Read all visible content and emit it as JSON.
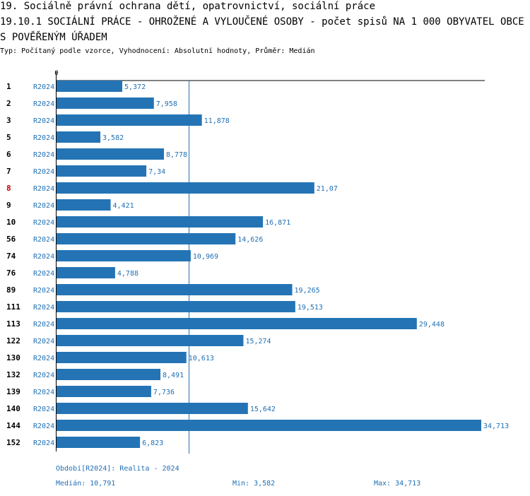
{
  "header": {
    "section": "19. Sociálně právní ochrana dětí, opatrovnictví, sociální práce",
    "indicator": "19.10.1 SOCIÁLNÍ PRÁCE - OHROŽENÉ A VYLOUČENÉ OSOBY - počet spisů NA 1 000 OBYVATEL OBCE S POVĚŘENÝM ÚŘADEM",
    "type_line": "Typ: Počítaný podle vzorce, Vyhodnocení: Absolutní hodnoty, Průměr: Medián"
  },
  "chart_data": {
    "type": "bar",
    "orientation": "horizontal",
    "x_tick_labels": [
      "0"
    ],
    "xlim": [
      0,
      34.713
    ],
    "median": 10.791,
    "highlight_category": "8",
    "colors": {
      "bar": "#2474b5",
      "value_label": "#1f6fb4",
      "highlight_label": "#cc0000",
      "median_line": "#2474b5"
    },
    "rows": [
      {
        "category": "1",
        "period": "R2024",
        "value": 5.372,
        "label": "5,372"
      },
      {
        "category": "2",
        "period": "R2024",
        "value": 7.958,
        "label": "7,958"
      },
      {
        "category": "3",
        "period": "R2024",
        "value": 11.878,
        "label": "11,878"
      },
      {
        "category": "5",
        "period": "R2024",
        "value": 3.582,
        "label": "3,582"
      },
      {
        "category": "6",
        "period": "R2024",
        "value": 8.778,
        "label": "8,778"
      },
      {
        "category": "7",
        "period": "R2024",
        "value": 7.34,
        "label": "7,34"
      },
      {
        "category": "8",
        "period": "R2024",
        "value": 21.07,
        "label": "21,07"
      },
      {
        "category": "9",
        "period": "R2024",
        "value": 4.421,
        "label": "4,421"
      },
      {
        "category": "10",
        "period": "R2024",
        "value": 16.871,
        "label": "16,871"
      },
      {
        "category": "56",
        "period": "R2024",
        "value": 14.626,
        "label": "14,626"
      },
      {
        "category": "74",
        "period": "R2024",
        "value": 10.969,
        "label": "10,969"
      },
      {
        "category": "76",
        "period": "R2024",
        "value": 4.788,
        "label": "4,788"
      },
      {
        "category": "89",
        "period": "R2024",
        "value": 19.265,
        "label": "19,265"
      },
      {
        "category": "111",
        "period": "R2024",
        "value": 19.513,
        "label": "19,513"
      },
      {
        "category": "113",
        "period": "R2024",
        "value": 29.448,
        "label": "29,448"
      },
      {
        "category": "122",
        "period": "R2024",
        "value": 15.274,
        "label": "15,274"
      },
      {
        "category": "130",
        "period": "R2024",
        "value": 10.613,
        "label": "10,613"
      },
      {
        "category": "132",
        "period": "R2024",
        "value": 8.491,
        "label": "8,491"
      },
      {
        "category": "139",
        "period": "R2024",
        "value": 7.736,
        "label": "7,736"
      },
      {
        "category": "140",
        "period": "R2024",
        "value": 15.642,
        "label": "15,642"
      },
      {
        "category": "144",
        "period": "R2024",
        "value": 34.713,
        "label": "34,713"
      },
      {
        "category": "152",
        "period": "R2024",
        "value": 6.823,
        "label": "6,823"
      }
    ]
  },
  "footer": {
    "period_note": "Období[R2024]: Realita - 2024",
    "median": "Medián: 10,791",
    "min": "Min: 3,582",
    "max": "Max: 34,713"
  }
}
